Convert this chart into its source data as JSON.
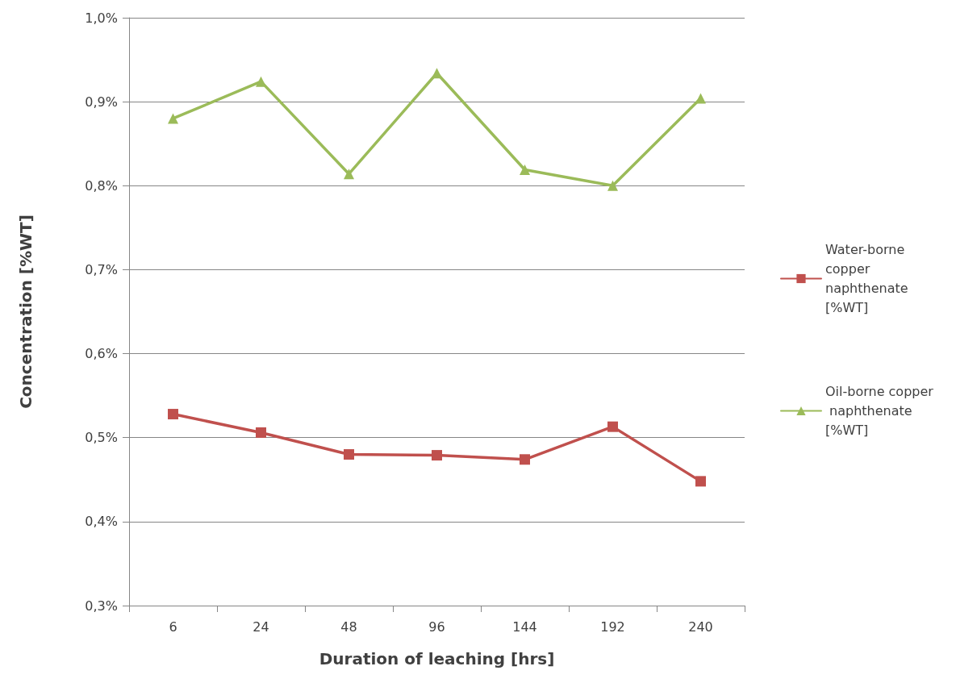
{
  "chart_data": {
    "type": "line",
    "xlabel": "Duration of leaching [hrs]",
    "ylabel": "Concentration [%WT]",
    "categories": [
      "6",
      "24",
      "48",
      "96",
      "144",
      "192",
      "240"
    ],
    "series": [
      {
        "name": "Water-borne copper naphthenate [%WT]",
        "color": "#c0504d",
        "marker": "square",
        "values": [
          0.528,
          0.506,
          0.48,
          0.479,
          0.474,
          0.513,
          0.448
        ]
      },
      {
        "name": "Oil-borne copper naphthenate [%WT]",
        "color": "#9bbb59",
        "marker": "triangle",
        "values": [
          0.88,
          0.924,
          0.814,
          0.934,
          0.819,
          0.8,
          0.904
        ]
      }
    ],
    "ylim": [
      0.3,
      1.0
    ],
    "yticks": [
      {
        "value": 0.3,
        "label": "0,3%"
      },
      {
        "value": 0.4,
        "label": "0,4%"
      },
      {
        "value": 0.5,
        "label": "0,5%"
      },
      {
        "value": 0.6,
        "label": "0,6%"
      },
      {
        "value": 0.7,
        "label": "0,7%"
      },
      {
        "value": 0.8,
        "label": "0,8%"
      },
      {
        "value": 0.9,
        "label": "0,9%"
      },
      {
        "value": 1.0,
        "label": "1,0%"
      }
    ],
    "grid": "y",
    "legend": "right",
    "line_style": "solid"
  }
}
